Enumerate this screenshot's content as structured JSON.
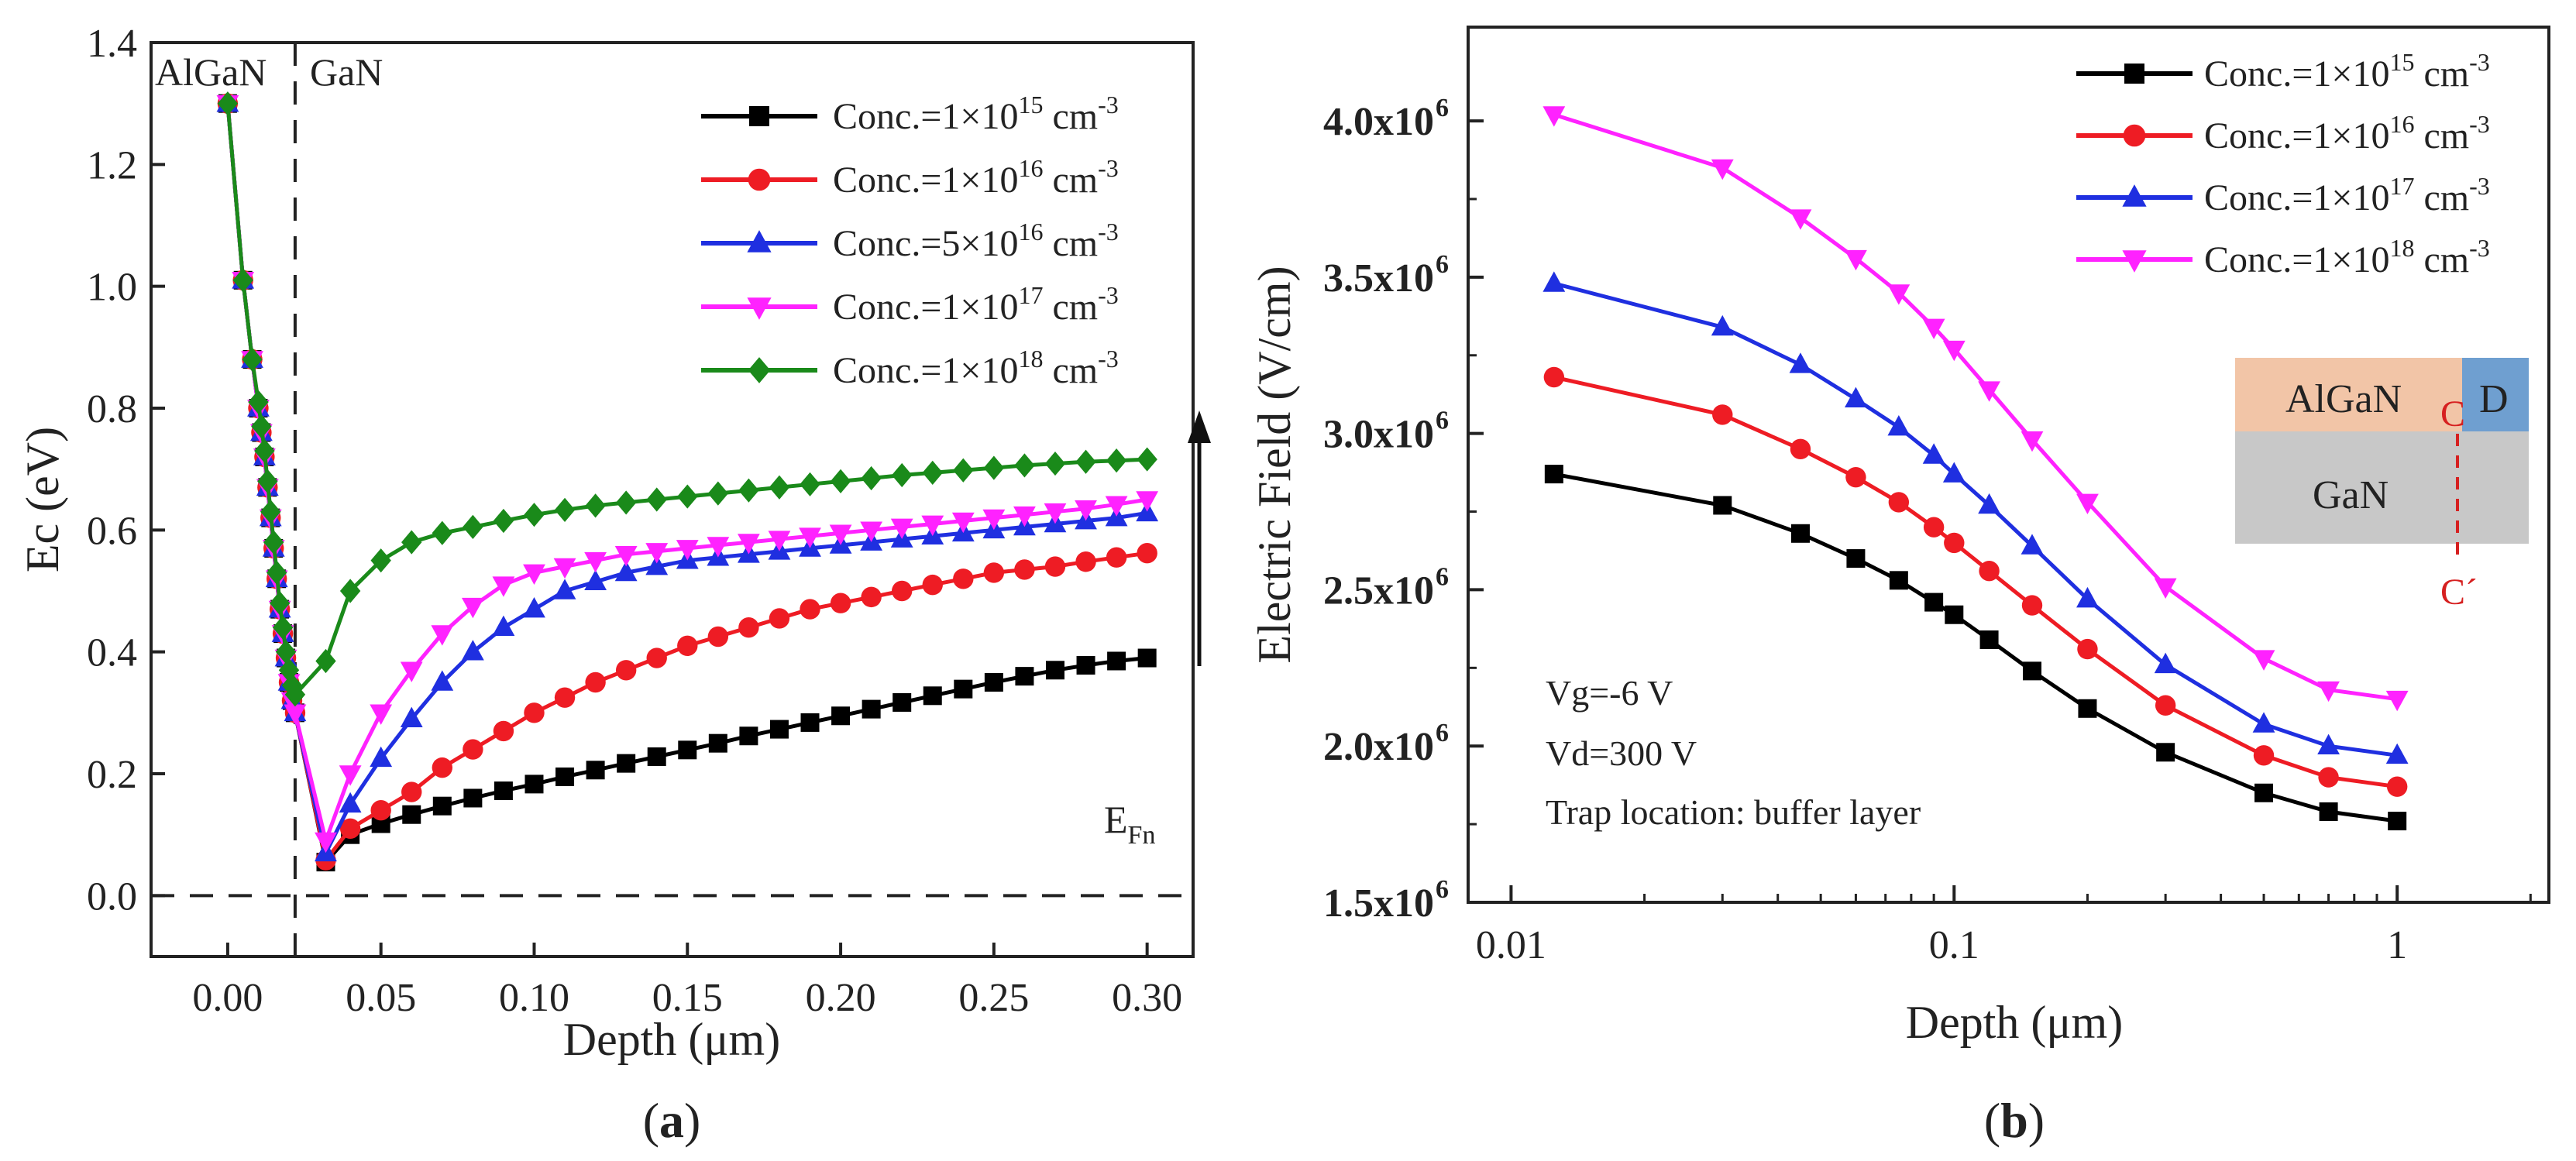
{
  "panels": {
    "a": {
      "label": "(a)",
      "letter": "a"
    },
    "b": {
      "label": "(b)",
      "letter": "b"
    }
  },
  "chart_data": [
    {
      "id": "a",
      "type": "line",
      "title": "",
      "xlabel": "Depth (μm)",
      "ylabel": "Ec (eV)",
      "xlim": [
        -0.025,
        0.315
      ],
      "ylim": [
        -0.1,
        1.4
      ],
      "xticks": [
        0.0,
        0.05,
        0.1,
        0.15,
        0.2,
        0.25,
        0.3
      ],
      "xtick_labels": [
        "0.00",
        "0.05",
        "0.10",
        "0.15",
        "0.20",
        "0.25",
        "0.30"
      ],
      "yticks": [
        0.0,
        0.2,
        0.4,
        0.6,
        0.8,
        1.0,
        1.2,
        1.4
      ],
      "ytick_labels": [
        "0.0",
        "0.2",
        "0.4",
        "0.6",
        "0.8",
        "1.0",
        "1.2",
        "1.4"
      ],
      "annotations": {
        "algan": "AlGaN",
        "gan": "GaN",
        "efn_main": "E",
        "efn_sub": "Fn",
        "interface_x": 0.022,
        "fermi_y": 0.0
      },
      "legend_position": "top-right",
      "series": [
        {
          "name": "Conc.=1×10^15 cm^-3",
          "label_pre": "Conc.=1×10",
          "exp": "15",
          "unit": " cm",
          "unit_exp": "-3",
          "color": "#000000",
          "marker": "square",
          "x": [
            0.0,
            0.005,
            0.008,
            0.01,
            0.011,
            0.012,
            0.013,
            0.014,
            0.015,
            0.016,
            0.017,
            0.018,
            0.019,
            0.02,
            0.021,
            0.022,
            0.032,
            0.04,
            0.05,
            0.06,
            0.07,
            0.08,
            0.09,
            0.1,
            0.11,
            0.12,
            0.13,
            0.14,
            0.15,
            0.16,
            0.17,
            0.18,
            0.19,
            0.2,
            0.21,
            0.22,
            0.23,
            0.24,
            0.25,
            0.26,
            0.27,
            0.28,
            0.29,
            0.3
          ],
          "y": [
            1.3,
            1.01,
            0.88,
            0.8,
            0.76,
            0.72,
            0.67,
            0.62,
            0.57,
            0.52,
            0.47,
            0.43,
            0.39,
            0.35,
            0.32,
            0.3,
            0.055,
            0.1,
            0.118,
            0.133,
            0.147,
            0.16,
            0.172,
            0.183,
            0.195,
            0.206,
            0.217,
            0.228,
            0.239,
            0.25,
            0.262,
            0.273,
            0.284,
            0.295,
            0.306,
            0.317,
            0.328,
            0.339,
            0.35,
            0.36,
            0.37,
            0.378,
            0.385,
            0.39
          ]
        },
        {
          "name": "Conc.=1×10^16 cm^-3",
          "label_pre": "Conc.=1×10",
          "exp": "16",
          "unit": " cm",
          "unit_exp": "-3",
          "color": "#ee1c24",
          "marker": "circle",
          "x": [
            0.0,
            0.005,
            0.008,
            0.01,
            0.011,
            0.012,
            0.013,
            0.014,
            0.015,
            0.016,
            0.017,
            0.018,
            0.019,
            0.02,
            0.021,
            0.022,
            0.032,
            0.04,
            0.05,
            0.06,
            0.07,
            0.08,
            0.09,
            0.1,
            0.11,
            0.12,
            0.13,
            0.14,
            0.15,
            0.16,
            0.17,
            0.18,
            0.19,
            0.2,
            0.21,
            0.22,
            0.23,
            0.24,
            0.25,
            0.26,
            0.27,
            0.28,
            0.29,
            0.3
          ],
          "y": [
            1.3,
            1.01,
            0.88,
            0.8,
            0.76,
            0.72,
            0.67,
            0.62,
            0.57,
            0.52,
            0.47,
            0.43,
            0.39,
            0.35,
            0.32,
            0.3,
            0.058,
            0.11,
            0.14,
            0.17,
            0.21,
            0.24,
            0.27,
            0.3,
            0.325,
            0.35,
            0.37,
            0.39,
            0.41,
            0.425,
            0.44,
            0.455,
            0.47,
            0.48,
            0.49,
            0.5,
            0.51,
            0.52,
            0.53,
            0.535,
            0.54,
            0.548,
            0.555,
            0.562
          ]
        },
        {
          "name": "Conc.=5×10^16 cm^-3",
          "label_pre": "Conc.=5×10",
          "exp": "16",
          "unit": " cm",
          "unit_exp": "-3",
          "color": "#1f2fe0",
          "marker": "triangle-up",
          "x": [
            0.0,
            0.005,
            0.008,
            0.01,
            0.011,
            0.012,
            0.013,
            0.014,
            0.015,
            0.016,
            0.017,
            0.018,
            0.019,
            0.02,
            0.021,
            0.022,
            0.032,
            0.04,
            0.05,
            0.06,
            0.07,
            0.08,
            0.09,
            0.1,
            0.11,
            0.12,
            0.13,
            0.14,
            0.15,
            0.16,
            0.17,
            0.18,
            0.19,
            0.2,
            0.21,
            0.22,
            0.23,
            0.24,
            0.25,
            0.26,
            0.27,
            0.28,
            0.29,
            0.3
          ],
          "y": [
            1.3,
            1.01,
            0.88,
            0.8,
            0.76,
            0.72,
            0.67,
            0.62,
            0.57,
            0.52,
            0.47,
            0.43,
            0.39,
            0.35,
            0.32,
            0.3,
            0.07,
            0.15,
            0.225,
            0.29,
            0.35,
            0.4,
            0.44,
            0.47,
            0.5,
            0.515,
            0.53,
            0.54,
            0.55,
            0.555,
            0.56,
            0.565,
            0.57,
            0.575,
            0.58,
            0.585,
            0.59,
            0.595,
            0.6,
            0.605,
            0.61,
            0.615,
            0.62,
            0.628
          ]
        },
        {
          "name": "Conc.=1×10^17 cm^-3",
          "label_pre": "Conc.=1×10",
          "exp": "17",
          "unit": " cm",
          "unit_exp": "-3",
          "color": "#ff22ff",
          "marker": "triangle-down",
          "x": [
            0.0,
            0.005,
            0.008,
            0.01,
            0.011,
            0.012,
            0.013,
            0.014,
            0.015,
            0.016,
            0.017,
            0.018,
            0.019,
            0.02,
            0.021,
            0.022,
            0.032,
            0.04,
            0.05,
            0.06,
            0.07,
            0.08,
            0.09,
            0.1,
            0.11,
            0.12,
            0.13,
            0.14,
            0.15,
            0.16,
            0.17,
            0.18,
            0.19,
            0.2,
            0.21,
            0.22,
            0.23,
            0.24,
            0.25,
            0.26,
            0.27,
            0.28,
            0.29,
            0.3
          ],
          "y": [
            1.3,
            1.01,
            0.88,
            0.8,
            0.76,
            0.72,
            0.67,
            0.62,
            0.57,
            0.52,
            0.47,
            0.43,
            0.39,
            0.35,
            0.32,
            0.3,
            0.09,
            0.2,
            0.3,
            0.37,
            0.43,
            0.475,
            0.51,
            0.53,
            0.54,
            0.55,
            0.56,
            0.565,
            0.57,
            0.575,
            0.58,
            0.585,
            0.59,
            0.595,
            0.6,
            0.605,
            0.61,
            0.615,
            0.62,
            0.625,
            0.63,
            0.635,
            0.642,
            0.65
          ]
        },
        {
          "name": "Conc.=1×10^18 cm^-3",
          "label_pre": "Conc.=1×10",
          "exp": "18",
          "unit": " cm",
          "unit_exp": "-3",
          "color": "#1a8a1a",
          "marker": "diamond",
          "x": [
            0.0,
            0.005,
            0.008,
            0.01,
            0.011,
            0.012,
            0.013,
            0.014,
            0.015,
            0.016,
            0.017,
            0.018,
            0.019,
            0.02,
            0.021,
            0.022,
            0.032,
            0.04,
            0.05,
            0.06,
            0.07,
            0.08,
            0.09,
            0.1,
            0.11,
            0.12,
            0.13,
            0.14,
            0.15,
            0.16,
            0.17,
            0.18,
            0.19,
            0.2,
            0.21,
            0.22,
            0.23,
            0.24,
            0.25,
            0.26,
            0.27,
            0.28,
            0.29,
            0.3
          ],
          "y": [
            1.3,
            1.01,
            0.88,
            0.81,
            0.77,
            0.73,
            0.68,
            0.63,
            0.58,
            0.53,
            0.48,
            0.44,
            0.4,
            0.37,
            0.345,
            0.33,
            0.385,
            0.5,
            0.55,
            0.58,
            0.595,
            0.605,
            0.615,
            0.625,
            0.633,
            0.64,
            0.645,
            0.65,
            0.655,
            0.66,
            0.665,
            0.67,
            0.675,
            0.68,
            0.685,
            0.69,
            0.694,
            0.698,
            0.702,
            0.706,
            0.709,
            0.712,
            0.714,
            0.716
          ]
        }
      ]
    },
    {
      "id": "b",
      "type": "line",
      "title": "",
      "xscale": "log",
      "xlabel": "Depth (μm)",
      "ylabel": "Electric Field (V/cm)",
      "xlim": [
        0.008,
        2.2
      ],
      "ylim": [
        1500000,
        4300000
      ],
      "xticks": [
        0.01,
        0.1,
        1
      ],
      "xtick_labels": [
        "0.01",
        "0.1",
        "1"
      ],
      "yticks": [
        1500000,
        2000000,
        2500000,
        3000000,
        3500000,
        4000000
      ],
      "ytick_labels": [
        "1.5x10",
        "2.0x10",
        "2.5x10",
        "3.0x10",
        "3.5x10",
        "4.0x10"
      ],
      "ytick_exp": "6",
      "annotations": {
        "conditions": [
          "Vg=-6 V",
          "Vd=300 V",
          "Trap location: buffer layer"
        ],
        "inset": {
          "algan": "AlGaN",
          "gan": "GaN",
          "drain": "D",
          "c_top": "C",
          "c_bottom": "C´"
        }
      },
      "legend_position": "top-right",
      "series": [
        {
          "name": "Conc.=1×10^15 cm^-3",
          "label_pre": "Conc.=1×10",
          "exp": "15",
          "unit": " cm",
          "unit_exp": "-3",
          "color": "#000000",
          "marker": "square",
          "x": [
            0.0125,
            0.03,
            0.045,
            0.06,
            0.075,
            0.09,
            0.1,
            0.12,
            0.15,
            0.2,
            0.3,
            0.5,
            0.7,
            1.0
          ],
          "y": [
            2870000,
            2770000,
            2680000,
            2600000,
            2530000,
            2460000,
            2420000,
            2340000,
            2240000,
            2120000,
            1980000,
            1850000,
            1790000,
            1760000
          ]
        },
        {
          "name": "Conc.=1×10^16 cm^-3",
          "label_pre": "Conc.=1×10",
          "exp": "16",
          "unit": " cm",
          "unit_exp": "-3",
          "color": "#ee1c24",
          "marker": "circle",
          "x": [
            0.0125,
            0.03,
            0.045,
            0.06,
            0.075,
            0.09,
            0.1,
            0.12,
            0.15,
            0.2,
            0.3,
            0.5,
            0.7,
            1.0
          ],
          "y": [
            3180000,
            3060000,
            2950000,
            2860000,
            2780000,
            2700000,
            2650000,
            2560000,
            2450000,
            2310000,
            2130000,
            1970000,
            1900000,
            1870000
          ]
        },
        {
          "name": "Conc.=1×10^17 cm^-3",
          "label_pre": "Conc.=1×10",
          "exp": "17",
          "unit": " cm",
          "unit_exp": "-3",
          "color": "#1f2fe0",
          "marker": "triangle-up",
          "x": [
            0.0125,
            0.03,
            0.045,
            0.06,
            0.075,
            0.09,
            0.1,
            0.12,
            0.15,
            0.2,
            0.3,
            0.5,
            0.7,
            1.0
          ],
          "y": [
            3480000,
            3340000,
            3220000,
            3110000,
            3020000,
            2930000,
            2870000,
            2770000,
            2640000,
            2470000,
            2260000,
            2070000,
            2000000,
            1970000
          ]
        },
        {
          "name": "Conc.=1×10^18 cm^-3",
          "label_pre": "Conc.=1×10",
          "exp": "18",
          "unit": " cm",
          "unit_exp": "-3",
          "color": "#ff22ff",
          "marker": "triangle-down",
          "x": [
            0.0125,
            0.03,
            0.045,
            0.06,
            0.075,
            0.09,
            0.1,
            0.12,
            0.15,
            0.2,
            0.3,
            0.5,
            0.7,
            1.0
          ],
          "y": [
            4020000,
            3850000,
            3690000,
            3560000,
            3450000,
            3340000,
            3270000,
            3140000,
            2980000,
            2780000,
            2510000,
            2280000,
            2180000,
            2150000
          ]
        }
      ]
    }
  ]
}
